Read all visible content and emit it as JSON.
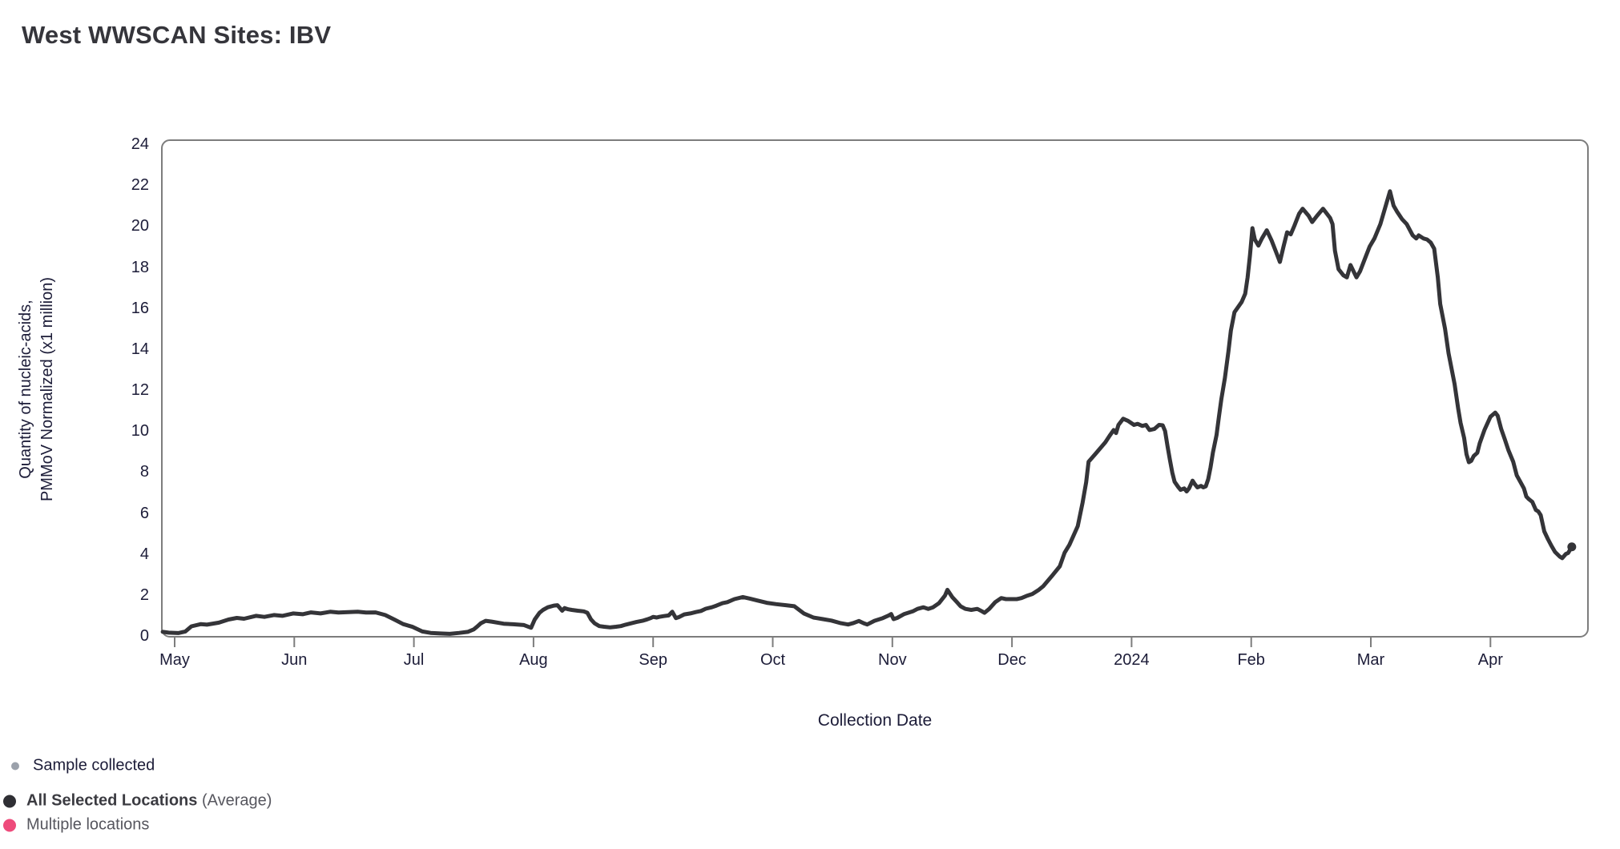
{
  "title": "West WWSCAN Sites: IBV",
  "colors": {
    "line": "#343438",
    "axis_border": "#7d7d7d",
    "axis_text": "#1c1c38",
    "title_text": "#35353b",
    "sample_dot": "#9ba1ab",
    "average_dot": "#2f2f34",
    "multiple_dot": "#ee4b7b"
  },
  "chart": {
    "y_axis_label_line1": "Quantity of nucleic-acids,",
    "y_axis_label_line2": "PMMoV Normalized (x1 million)",
    "x_axis_label": "Collection Date",
    "y_ticks": [
      0,
      2,
      4,
      6,
      8,
      10,
      12,
      14,
      16,
      18,
      20,
      22,
      24
    ],
    "x_ticks": [
      "May",
      "Jun",
      "Jul",
      "Aug",
      "Sep",
      "Oct",
      "Nov",
      "Dec",
      "2024",
      "Feb",
      "Mar",
      "Apr"
    ]
  },
  "legend": [
    {
      "label": "Sample collected",
      "color": "#9ba1ab"
    },
    {
      "label": "All Selected Locations",
      "suffix": " (Average)",
      "color": "#2f2f34"
    },
    {
      "label": "Multiple locations",
      "color": "#ee4b7b"
    }
  ],
  "chart_data": {
    "type": "line",
    "title": "West WWSCAN Sites: IBV",
    "xlabel": "Collection Date",
    "ylabel": "Quantity of nucleic-acids, PMMoV Normalized (x1 million)",
    "ylim": [
      0,
      24
    ],
    "x_unit": "months since May 2023; 0=May, 1=Jun, 2=Jul, 3=Aug, 4=Sep, 5=Oct, 6=Nov, 7=Dec, 8=Jan 2024, 9=Feb, 10=Mar, 11=Apr",
    "x_tick_labels": [
      "May",
      "Jun",
      "Jul",
      "Aug",
      "Sep",
      "Oct",
      "Nov",
      "Dec",
      "2024",
      "Feb",
      "Mar",
      "Apr"
    ],
    "legend_position": "bottom-left",
    "grid": false,
    "series": [
      {
        "name": "All Selected Locations (Average)",
        "points": [
          [
            -0.1,
            0.2
          ],
          [
            -0.05,
            0.16
          ],
          [
            0.03,
            0.14
          ],
          [
            0.09,
            0.22
          ],
          [
            0.14,
            0.47
          ],
          [
            0.22,
            0.58
          ],
          [
            0.27,
            0.55
          ],
          [
            0.37,
            0.65
          ],
          [
            0.45,
            0.8
          ],
          [
            0.52,
            0.88
          ],
          [
            0.58,
            0.84
          ],
          [
            0.68,
            0.98
          ],
          [
            0.75,
            0.93
          ],
          [
            0.83,
            1.02
          ],
          [
            0.9,
            0.98
          ],
          [
            0.99,
            1.1
          ],
          [
            1.07,
            1.06
          ],
          [
            1.14,
            1.15
          ],
          [
            1.22,
            1.1
          ],
          [
            1.3,
            1.18
          ],
          [
            1.37,
            1.14
          ],
          [
            1.45,
            1.16
          ],
          [
            1.53,
            1.18
          ],
          [
            1.6,
            1.14
          ],
          [
            1.68,
            1.15
          ],
          [
            1.76,
            1.02
          ],
          [
            1.84,
            0.79
          ],
          [
            1.91,
            0.58
          ],
          [
            1.99,
            0.44
          ],
          [
            2.07,
            0.22
          ],
          [
            2.14,
            0.15
          ],
          [
            2.22,
            0.12
          ],
          [
            2.3,
            0.1
          ],
          [
            2.38,
            0.15
          ],
          [
            2.45,
            0.2
          ],
          [
            2.5,
            0.32
          ],
          [
            2.53,
            0.46
          ],
          [
            2.56,
            0.62
          ],
          [
            2.6,
            0.74
          ],
          [
            2.65,
            0.7
          ],
          [
            2.75,
            0.6
          ],
          [
            2.83,
            0.57
          ],
          [
            2.92,
            0.53
          ],
          [
            2.98,
            0.4
          ],
          [
            3.01,
            0.8
          ],
          [
            3.05,
            1.13
          ],
          [
            3.08,
            1.27
          ],
          [
            3.12,
            1.4
          ],
          [
            3.17,
            1.48
          ],
          [
            3.2,
            1.5
          ],
          [
            3.24,
            1.23
          ],
          [
            3.26,
            1.36
          ],
          [
            3.29,
            1.3
          ],
          [
            3.32,
            1.27
          ],
          [
            3.37,
            1.23
          ],
          [
            3.42,
            1.2
          ],
          [
            3.45,
            1.13
          ],
          [
            3.48,
            0.81
          ],
          [
            3.51,
            0.62
          ],
          [
            3.55,
            0.48
          ],
          [
            3.59,
            0.45
          ],
          [
            3.64,
            0.42
          ],
          [
            3.69,
            0.45
          ],
          [
            3.73,
            0.48
          ],
          [
            3.77,
            0.55
          ],
          [
            3.82,
            0.62
          ],
          [
            3.86,
            0.68
          ],
          [
            3.91,
            0.74
          ],
          [
            3.95,
            0.81
          ],
          [
            3.98,
            0.87
          ],
          [
            4.0,
            0.93
          ],
          [
            4.03,
            0.9
          ],
          [
            4.05,
            0.93
          ],
          [
            4.09,
            0.97
          ],
          [
            4.13,
            1.0
          ],
          [
            4.16,
            1.18
          ],
          [
            4.19,
            0.87
          ],
          [
            4.22,
            0.93
          ],
          [
            4.26,
            1.05
          ],
          [
            4.31,
            1.1
          ],
          [
            4.36,
            1.17
          ],
          [
            4.4,
            1.22
          ],
          [
            4.44,
            1.33
          ],
          [
            4.49,
            1.4
          ],
          [
            4.53,
            1.48
          ],
          [
            4.58,
            1.6
          ],
          [
            4.62,
            1.65
          ],
          [
            4.68,
            1.8
          ],
          [
            4.75,
            1.9
          ],
          [
            4.81,
            1.82
          ],
          [
            4.87,
            1.73
          ],
          [
            4.95,
            1.62
          ],
          [
            5.03,
            1.55
          ],
          [
            5.11,
            1.5
          ],
          [
            5.18,
            1.45
          ],
          [
            5.26,
            1.1
          ],
          [
            5.34,
            0.9
          ],
          [
            5.42,
            0.82
          ],
          [
            5.49,
            0.75
          ],
          [
            5.57,
            0.62
          ],
          [
            5.63,
            0.56
          ],
          [
            5.67,
            0.62
          ],
          [
            5.72,
            0.73
          ],
          [
            5.76,
            0.62
          ],
          [
            5.79,
            0.56
          ],
          [
            5.85,
            0.74
          ],
          [
            5.92,
            0.87
          ],
          [
            5.97,
            1.0
          ],
          [
            5.99,
            1.07
          ],
          [
            6.01,
            0.82
          ],
          [
            6.04,
            0.88
          ],
          [
            6.1,
            1.07
          ],
          [
            6.17,
            1.2
          ],
          [
            6.21,
            1.32
          ],
          [
            6.26,
            1.4
          ],
          [
            6.3,
            1.32
          ],
          [
            6.34,
            1.4
          ],
          [
            6.39,
            1.6
          ],
          [
            6.44,
            1.97
          ],
          [
            6.46,
            2.25
          ],
          [
            6.5,
            1.9
          ],
          [
            6.54,
            1.65
          ],
          [
            6.57,
            1.45
          ],
          [
            6.61,
            1.32
          ],
          [
            6.66,
            1.27
          ],
          [
            6.71,
            1.32
          ],
          [
            6.75,
            1.2
          ],
          [
            6.77,
            1.13
          ],
          [
            6.81,
            1.32
          ],
          [
            6.86,
            1.65
          ],
          [
            6.91,
            1.85
          ],
          [
            6.95,
            1.8
          ],
          [
            6.99,
            1.8
          ],
          [
            7.04,
            1.8
          ],
          [
            7.08,
            1.85
          ],
          [
            7.13,
            1.97
          ],
          [
            7.17,
            2.05
          ],
          [
            7.22,
            2.23
          ],
          [
            7.26,
            2.42
          ],
          [
            7.33,
            2.9
          ],
          [
            7.4,
            3.4
          ],
          [
            7.44,
            4.06
          ],
          [
            7.48,
            4.45
          ],
          [
            7.55,
            5.36
          ],
          [
            7.59,
            6.5
          ],
          [
            7.62,
            7.5
          ],
          [
            7.64,
            8.5
          ],
          [
            7.7,
            8.9
          ],
          [
            7.78,
            9.45
          ],
          [
            7.82,
            9.8
          ],
          [
            7.85,
            10.05
          ],
          [
            7.87,
            9.9
          ],
          [
            7.89,
            10.3
          ],
          [
            7.93,
            10.6
          ],
          [
            7.97,
            10.5
          ],
          [
            8.02,
            10.3
          ],
          [
            8.05,
            10.35
          ],
          [
            8.09,
            10.25
          ],
          [
            8.12,
            10.3
          ],
          [
            8.15,
            10.05
          ],
          [
            8.19,
            10.1
          ],
          [
            8.23,
            10.3
          ],
          [
            8.26,
            10.28
          ],
          [
            8.28,
            10.0
          ],
          [
            8.3,
            9.27
          ],
          [
            8.32,
            8.6
          ],
          [
            8.34,
            7.97
          ],
          [
            8.36,
            7.52
          ],
          [
            8.39,
            7.27
          ],
          [
            8.41,
            7.13
          ],
          [
            8.44,
            7.2
          ],
          [
            8.46,
            7.05
          ],
          [
            8.48,
            7.2
          ],
          [
            8.51,
            7.58
          ],
          [
            8.53,
            7.4
          ],
          [
            8.55,
            7.25
          ],
          [
            8.58,
            7.32
          ],
          [
            8.6,
            7.25
          ],
          [
            8.62,
            7.3
          ],
          [
            8.64,
            7.65
          ],
          [
            8.66,
            8.22
          ],
          [
            8.68,
            8.95
          ],
          [
            8.71,
            9.8
          ],
          [
            8.73,
            10.7
          ],
          [
            8.75,
            11.55
          ],
          [
            8.78,
            12.6
          ],
          [
            8.81,
            13.9
          ],
          [
            8.83,
            14.9
          ],
          [
            8.86,
            15.8
          ],
          [
            8.92,
            16.3
          ],
          [
            8.95,
            16.7
          ],
          [
            8.97,
            17.5
          ],
          [
            8.99,
            18.6
          ],
          [
            9.01,
            19.9
          ],
          [
            9.03,
            19.35
          ],
          [
            9.06,
            19.05
          ],
          [
            9.09,
            19.4
          ],
          [
            9.13,
            19.8
          ],
          [
            9.17,
            19.3
          ],
          [
            9.21,
            18.7
          ],
          [
            9.24,
            18.25
          ],
          [
            9.27,
            19.0
          ],
          [
            9.3,
            19.7
          ],
          [
            9.33,
            19.6
          ],
          [
            9.36,
            20.0
          ],
          [
            9.4,
            20.6
          ],
          [
            9.43,
            20.85
          ],
          [
            9.48,
            20.5
          ],
          [
            9.51,
            20.2
          ],
          [
            9.55,
            20.5
          ],
          [
            9.6,
            20.85
          ],
          [
            9.62,
            20.7
          ],
          [
            9.66,
            20.4
          ],
          [
            9.68,
            20.1
          ],
          [
            9.7,
            18.8
          ],
          [
            9.73,
            17.9
          ],
          [
            9.77,
            17.6
          ],
          [
            9.8,
            17.5
          ],
          [
            9.83,
            18.1
          ],
          [
            9.88,
            17.5
          ],
          [
            9.91,
            17.8
          ],
          [
            9.95,
            18.4
          ],
          [
            9.99,
            19.0
          ],
          [
            10.03,
            19.4
          ],
          [
            10.08,
            20.1
          ],
          [
            10.12,
            20.9
          ],
          [
            10.16,
            21.7
          ],
          [
            10.19,
            21.0
          ],
          [
            10.22,
            20.7
          ],
          [
            10.26,
            20.35
          ],
          [
            10.3,
            20.1
          ],
          [
            10.35,
            19.55
          ],
          [
            10.38,
            19.4
          ],
          [
            10.4,
            19.55
          ],
          [
            10.44,
            19.4
          ],
          [
            10.47,
            19.35
          ],
          [
            10.5,
            19.2
          ],
          [
            10.53,
            18.9
          ],
          [
            10.56,
            17.5
          ],
          [
            10.58,
            16.2
          ],
          [
            10.62,
            15.0
          ],
          [
            10.65,
            13.8
          ],
          [
            10.7,
            12.3
          ],
          [
            10.73,
            11.1
          ],
          [
            10.75,
            10.4
          ],
          [
            10.78,
            9.65
          ],
          [
            10.8,
            8.87
          ],
          [
            10.82,
            8.48
          ],
          [
            10.84,
            8.55
          ],
          [
            10.86,
            8.78
          ],
          [
            10.89,
            8.94
          ],
          [
            10.91,
            9.4
          ],
          [
            10.95,
            10.05
          ],
          [
            11.0,
            10.7
          ],
          [
            11.04,
            10.9
          ],
          [
            11.06,
            10.75
          ],
          [
            11.09,
            10.1
          ],
          [
            11.12,
            9.6
          ],
          [
            11.15,
            9.07
          ],
          [
            11.19,
            8.5
          ],
          [
            11.22,
            7.84
          ],
          [
            11.25,
            7.52
          ],
          [
            11.28,
            7.2
          ],
          [
            11.3,
            6.8
          ],
          [
            11.32,
            6.68
          ],
          [
            11.35,
            6.54
          ],
          [
            11.38,
            6.15
          ],
          [
            11.4,
            6.08
          ],
          [
            11.42,
            5.9
          ],
          [
            11.45,
            5.1
          ],
          [
            11.48,
            4.73
          ],
          [
            11.51,
            4.4
          ],
          [
            11.54,
            4.1
          ],
          [
            11.58,
            3.87
          ],
          [
            11.6,
            3.8
          ],
          [
            11.63,
            4.0
          ],
          [
            11.65,
            4.05
          ],
          [
            11.68,
            4.35
          ]
        ]
      }
    ]
  }
}
